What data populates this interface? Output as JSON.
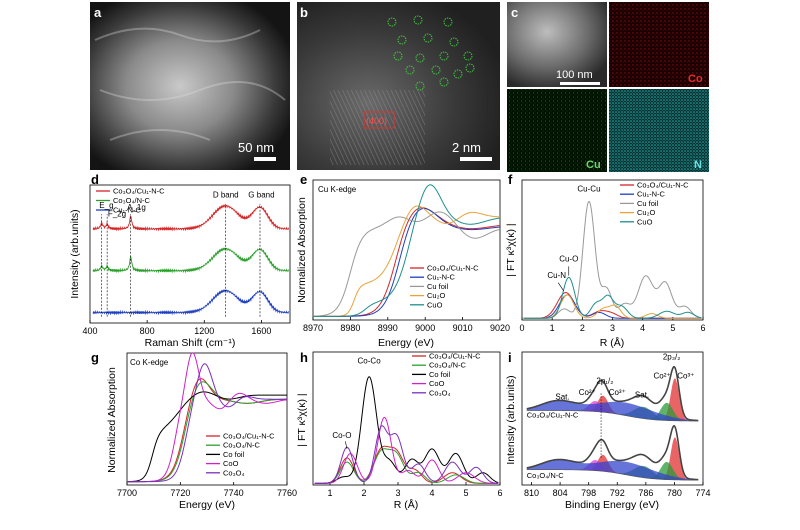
{
  "colors": {
    "co3o4_cu1": "#d62728",
    "co3o4_nc": "#2ca02c",
    "cu1_nc": "#1f3fbf",
    "cu_foil": "#999999",
    "cu2o": "#e8a33c",
    "cuo": "#1f8f8f",
    "co_foil": "#000000",
    "coo": "#d020c8",
    "co3o4": "#7a2fbf",
    "co2p": "#3344cc",
    "co3p": "#e23030",
    "sat": "#2a9a3a",
    "v2p": "#e040d0"
  },
  "panels": {
    "a": {
      "label": "a",
      "scalebar": "50 nm"
    },
    "b": {
      "label": "b",
      "scalebar": "2 nm",
      "lattice": "(400)"
    },
    "c": {
      "label": "c",
      "scalebar": "100 nm",
      "maps": [
        "Co",
        "Cu",
        "N"
      ]
    },
    "d": {
      "label": "d"
    },
    "e": {
      "label": "e"
    },
    "f": {
      "label": "f"
    },
    "g": {
      "label": "g"
    },
    "h": {
      "label": "h"
    },
    "i": {
      "label": "i"
    }
  },
  "chart_data": [
    {
      "id": "d",
      "type": "line",
      "xlabel": "Raman Shift (cm⁻¹)",
      "ylabel": "Intensity (arb.units)",
      "xlim": [
        400,
        1800
      ],
      "xticks": [
        400,
        800,
        1200,
        1600
      ],
      "legend": [
        "Co₃O₄/Cu₁-N-C",
        "Co₃O₄/N-C",
        "Cu₁-N-C"
      ],
      "annotations": [
        "E_g",
        "F_2g",
        "A_1g",
        "D band",
        "G band"
      ],
      "series": [
        {
          "name": "Co₃O₄/Cu₁-N-C",
          "offset": 2,
          "peaks": [
            [
              482,
              0.25
            ],
            [
              520,
              0.2
            ],
            [
              685,
              0.55
            ],
            [
              1350,
              1.0
            ],
            [
              1590,
              0.92
            ]
          ]
        },
        {
          "name": "Co₃O₄/N-C",
          "offset": 1,
          "peaks": [
            [
              482,
              0.2
            ],
            [
              520,
              0.18
            ],
            [
              685,
              0.6
            ],
            [
              1350,
              0.95
            ],
            [
              1590,
              0.9
            ]
          ]
        },
        {
          "name": "Cu₁-N-C",
          "offset": 0,
          "peaks": [
            [
              1350,
              0.95
            ],
            [
              1590,
              0.88
            ]
          ]
        }
      ]
    },
    {
      "id": "e",
      "type": "line",
      "title": "Cu K-edge",
      "xlabel": "Energy (eV)",
      "ylabel": "Normalized Absorption",
      "xlim": [
        8970,
        9020
      ],
      "xticks": [
        8970,
        8980,
        8990,
        9000,
        9010,
        9020
      ],
      "legend": [
        "Co₃O₄/Cu₁-N-C",
        "Cu₁-N-C",
        "Cu foil",
        "Cu₂O",
        "CuO"
      ]
    },
    {
      "id": "f",
      "type": "line",
      "xlabel": "R (Å)",
      "ylabel": "| FT κ³χ(κ) |",
      "xlim": [
        0,
        6
      ],
      "xticks": [
        0,
        1,
        2,
        3,
        4,
        5,
        6
      ],
      "legend": [
        "Co₃O₄/Cu₁-N-C",
        "Cu₁-N-C",
        "Cu foil",
        "Cu₂O",
        "CuO"
      ],
      "annotations": [
        "Cu-Cu",
        "Cu-O",
        "Cu-N"
      ]
    },
    {
      "id": "g",
      "type": "line",
      "title": "Co K-edge",
      "xlabel": "Energy (eV)",
      "ylabel": "Normalized Absorption",
      "xlim": [
        7700,
        7760
      ],
      "xticks": [
        7700,
        7720,
        7740,
        7760
      ],
      "legend": [
        "Co₃O₄/Cu₁-N-C",
        "Co₃O₄/N-C",
        "Co foil",
        "CoO",
        "Co₃O₄"
      ]
    },
    {
      "id": "h",
      "type": "line",
      "xlabel": "R (Å)",
      "ylabel": "| FT κ³χ(κ) |",
      "xlim": [
        0.5,
        6
      ],
      "xticks": [
        1,
        2,
        3,
        4,
        5,
        6
      ],
      "legend": [
        "Co₃O₄/Cu₁-N-C",
        "Co₃O₄/N-C",
        "Co foil",
        "CoO",
        "Co₃O₄"
      ],
      "annotations": [
        "Co-Co",
        "Co-O"
      ]
    },
    {
      "id": "i",
      "type": "line",
      "xlabel": "Binding Energy (eV)",
      "ylabel": "Intensity (arb.units)",
      "xlim": [
        812,
        774
      ],
      "xticks": [
        810,
        804,
        798,
        792,
        786,
        780,
        774
      ],
      "samples": [
        "Co₃O₄/Cu₁-N-C",
        "Co₃O₄/N-C"
      ],
      "annotations": [
        "2p₃/₂",
        "2p₁/₂",
        "Co²⁺",
        "Co³⁺",
        "Sat."
      ]
    }
  ]
}
